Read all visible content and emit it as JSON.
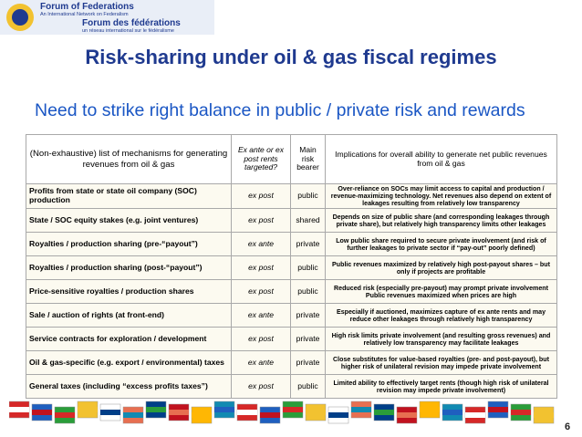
{
  "logo": {
    "line1": "Forum of Federations",
    "line2": "An International Network on Federalism",
    "line3": "Forum des fédérations",
    "line4": "un réseau international sur le fédéralisme"
  },
  "title": "Risk-sharing under oil & gas fiscal regimes",
  "subtitle": "Need to strike right balance in public / private risk and rewards",
  "table": {
    "header": [
      "(Non-exhaustive) list of mechanisms for generating revenues from oil & gas",
      "Ex ante or ex post rents targeted?",
      "Main risk bearer",
      "Implications for overall ability to generate net public revenues from oil & gas"
    ],
    "rows": [
      [
        "Profits from state or state oil company (SOC) production",
        "ex post",
        "public",
        "Over-reliance on SOCs may limit access to capital and production / revenue-maximizing technology. Net revenues also depend on extent of leakages resulting from relatively low transparency"
      ],
      [
        "State / SOC equity stakes (e.g. joint ventures)",
        "ex post",
        "shared",
        "Depends on size of public share (and corresponding leakages through private share), but relatively high transparency limits other leakages"
      ],
      [
        "Royalties / production sharing (pre-“payout”)",
        "ex ante",
        "private",
        "Low public share required to secure private involvement (and risk of further leakages to private sector if “pay-out” poorly defined)"
      ],
      [
        "Royalties / production sharing (post-“payout”)",
        "ex post",
        "public",
        "Public revenues maximized by relatively high post-payout shares – but only if projects are profitable"
      ],
      [
        "Price-sensitive royalties / production shares",
        "ex post",
        "public",
        "Reduced risk (especially pre-payout) may prompt private involvement Public revenues maximized when prices are high"
      ],
      [
        "Sale / auction of rights (at front-end)",
        "ex ante",
        "private",
        "Especially if auctioned, maximizes capture of ex ante rents and may reduce other leakages through relatively high transparency"
      ],
      [
        "Service contracts for exploration / development",
        "ex post",
        "private",
        "High risk limits private involvement (and resulting gross revenues) and relatively low transparency may facilitate leakages"
      ],
      [
        "Oil & gas-specific (e.g. export / environmental) taxes",
        "ex ante",
        "private",
        "Close substitutes for value-based royalties (pre- and post-payout), but higher risk of unilateral revision may impede private involvement"
      ],
      [
        "General taxes (including “excess profits taxes”)",
        "ex post",
        "public",
        "Limited ability to effectively target rents (though high risk of unilateral revision may impede private involvement)"
      ]
    ]
  },
  "page_number": "6"
}
